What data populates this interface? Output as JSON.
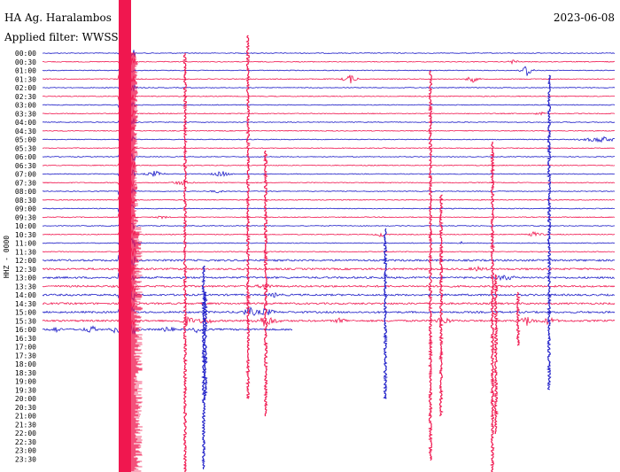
{
  "header": {
    "station": "HA Ag. Haralambos",
    "date": "2023-06-08",
    "filter": "Applied filter: WWSSN-"
  },
  "colors": {
    "odd": "#f0174f",
    "even": "#1f1fc8",
    "text": "#000000"
  },
  "chart_data": {
    "type": "line",
    "title": "HA Ag. Haralambos",
    "ylabel": "HHZ - 0000",
    "y_ticks": [
      "00:00",
      "00:30",
      "01:00",
      "01:30",
      "02:00",
      "02:30",
      "03:00",
      "03:30",
      "04:00",
      "04:30",
      "05:00",
      "05:30",
      "06:00",
      "06:30",
      "07:00",
      "07:30",
      "08:00",
      "08:30",
      "09:00",
      "09:30",
      "10:00",
      "10:30",
      "11:00",
      "11:30",
      "12:00",
      "12:30",
      "13:00",
      "13:30",
      "14:00",
      "14:30",
      "15:00",
      "15:30",
      "16:00",
      "16:30",
      "17:00",
      "17:30",
      "18:00",
      "18:30",
      "19:00",
      "19:30",
      "20:00",
      "20:30",
      "21:00",
      "21:30",
      "22:00",
      "22:30",
      "23:00",
      "23:30"
    ],
    "recorded_until": "16:00",
    "trace_colors": [
      "#1f1fc8",
      "#f0174f"
    ],
    "grid": false
  }
}
